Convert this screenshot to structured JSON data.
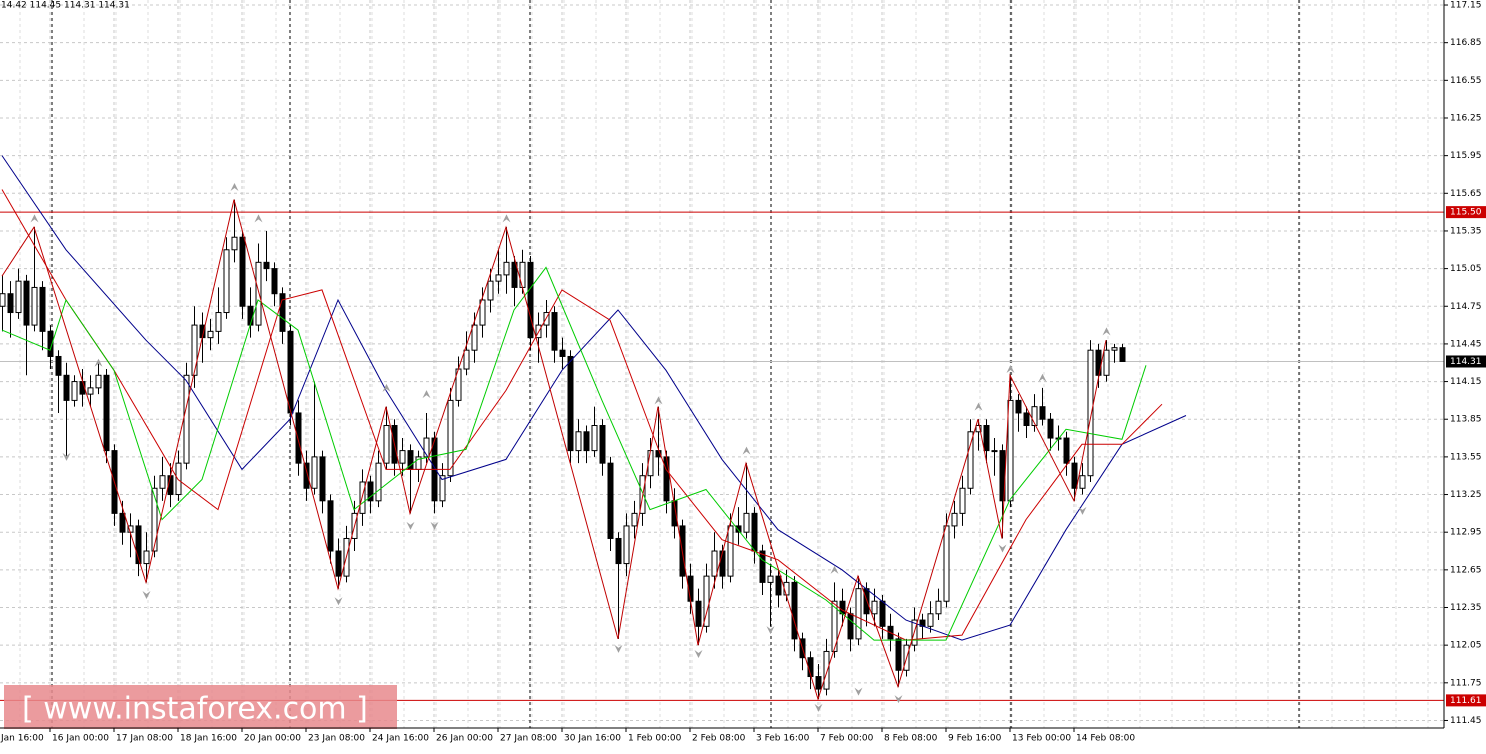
{
  "chart_data": {
    "type": "candlestick",
    "header": "14.42 114.45 114.31 114.31",
    "watermark": "[ www.instaforex.com ]",
    "bull_color": "#ffffff",
    "bear_color": "#000000",
    "grid": true,
    "ylim": [
      111.39,
      117.19
    ],
    "xlim": [
      -0.25,
      180.25
    ],
    "yticks": [
      117.15,
      116.85,
      116.55,
      116.25,
      115.95,
      115.65,
      115.35,
      115.05,
      114.75,
      114.45,
      114.15,
      113.85,
      113.55,
      113.25,
      112.95,
      112.65,
      112.35,
      112.05,
      111.75,
      111.45
    ],
    "xticks": [
      {
        "value": -2,
        "label": "Jan 16:00"
      },
      {
        "value": 6,
        "label": "16 Jan 00:00"
      },
      {
        "value": 14,
        "label": "17 Jan 08:00"
      },
      {
        "value": 22,
        "label": "18 Jan 16:00"
      },
      {
        "value": 30,
        "label": "20 Jan 00:00"
      },
      {
        "value": 38,
        "label": "23 Jan 08:00"
      },
      {
        "value": 46,
        "label": "24 Jan 16:00"
      },
      {
        "value": 54,
        "label": "26 Jan 00:00"
      },
      {
        "value": 62,
        "label": "27 Jan 08:00"
      },
      {
        "value": 70,
        "label": "30 Jan 16:00"
      },
      {
        "value": 78,
        "label": "1 Feb 00:00"
      },
      {
        "value": 86,
        "label": "2 Feb 08:00"
      },
      {
        "value": 94,
        "label": "3 Feb 16:00"
      },
      {
        "value": 102,
        "label": "7 Feb 00:00"
      },
      {
        "value": 110,
        "label": "8 Feb 08:00"
      },
      {
        "value": 118,
        "label": "9 Feb 16:00"
      },
      {
        "value": 126,
        "label": "13 Feb 00:00"
      },
      {
        "value": 134,
        "label": "14 Feb 08:00"
      }
    ],
    "levels": [
      {
        "value": {
          "value": 115.5,
          "label": "115.50"
        },
        "color": "#cc0000"
      },
      {
        "value": 111.61,
        "color": "#cc0000"
      }
    ],
    "current_price": 114.31,
    "candles": [
      [
        114.75,
        115.0,
        114.55,
        114.85
      ],
      [
        114.85,
        114.95,
        114.5,
        114.7
      ],
      [
        114.7,
        115.05,
        114.65,
        114.95
      ],
      [
        114.95,
        115.0,
        114.2,
        114.6
      ],
      [
        114.6,
        115.38,
        114.55,
        114.9
      ],
      [
        114.9,
        114.95,
        114.4,
        114.55
      ],
      [
        114.55,
        114.6,
        114.25,
        114.35
      ],
      [
        114.35,
        114.4,
        113.9,
        114.2
      ],
      [
        114.2,
        114.3,
        113.55,
        114.0
      ],
      [
        114.0,
        114.2,
        113.95,
        114.15
      ],
      [
        114.15,
        114.25,
        113.95,
        114.05
      ],
      [
        114.05,
        114.2,
        113.95,
        114.1
      ],
      [
        114.1,
        114.3,
        114.05,
        114.2
      ],
      [
        114.2,
        114.25,
        113.5,
        113.6
      ],
      [
        113.6,
        113.65,
        113.0,
        113.1
      ],
      [
        113.1,
        113.2,
        112.85,
        112.95
      ],
      [
        112.95,
        113.1,
        112.75,
        113.0
      ],
      [
        113.0,
        113.05,
        112.6,
        112.7
      ],
      [
        112.7,
        112.95,
        112.55,
        112.8
      ],
      [
        112.8,
        113.4,
        112.75,
        113.3
      ],
      [
        113.3,
        113.55,
        113.2,
        113.4
      ],
      [
        113.4,
        113.5,
        113.15,
        113.25
      ],
      [
        113.25,
        113.6,
        113.2,
        113.5
      ],
      [
        113.5,
        114.3,
        113.45,
        114.2
      ],
      [
        114.2,
        114.75,
        114.1,
        114.6
      ],
      [
        114.6,
        114.7,
        114.3,
        114.5
      ],
      [
        114.5,
        114.65,
        114.4,
        114.55
      ],
      [
        114.55,
        114.9,
        114.45,
        114.7
      ],
      [
        114.7,
        115.3,
        114.65,
        115.2
      ],
      [
        115.2,
        115.6,
        115.1,
        115.3
      ],
      [
        115.3,
        115.35,
        114.65,
        114.75
      ],
      [
        114.75,
        114.9,
        114.5,
        114.6
      ],
      [
        114.6,
        115.25,
        114.55,
        115.1
      ],
      [
        115.1,
        115.35,
        114.95,
        115.05
      ],
      [
        115.05,
        115.1,
        114.75,
        114.85
      ],
      [
        114.85,
        114.9,
        114.45,
        114.55
      ],
      [
        114.55,
        114.6,
        113.8,
        113.9
      ],
      [
        113.9,
        114.0,
        113.4,
        113.5
      ],
      [
        113.5,
        113.6,
        113.2,
        113.3
      ],
      [
        113.3,
        114.15,
        113.25,
        113.55
      ],
      [
        113.55,
        113.6,
        113.1,
        113.2
      ],
      [
        113.2,
        113.25,
        112.7,
        112.8
      ],
      [
        112.8,
        112.9,
        112.5,
        112.6
      ],
      [
        112.6,
        113.0,
        112.55,
        112.9
      ],
      [
        112.9,
        113.2,
        112.8,
        113.1
      ],
      [
        113.1,
        113.45,
        113.0,
        113.35
      ],
      [
        113.35,
        113.4,
        113.1,
        113.2
      ],
      [
        113.2,
        113.6,
        113.15,
        113.5
      ],
      [
        113.5,
        113.95,
        113.45,
        113.8
      ],
      [
        113.8,
        113.85,
        113.4,
        113.5
      ],
      [
        113.5,
        113.7,
        113.4,
        113.6
      ],
      [
        113.6,
        113.65,
        113.1,
        113.45
      ],
      [
        113.45,
        113.6,
        113.35,
        113.55
      ],
      [
        113.55,
        113.9,
        113.5,
        113.7
      ],
      [
        113.7,
        113.75,
        113.1,
        113.2
      ],
      [
        113.2,
        113.5,
        113.15,
        113.4
      ],
      [
        113.4,
        114.1,
        113.35,
        114.0
      ],
      [
        114.0,
        114.35,
        113.95,
        114.25
      ],
      [
        114.25,
        114.55,
        114.2,
        114.4
      ],
      [
        114.4,
        114.7,
        114.3,
        114.6
      ],
      [
        114.6,
        114.9,
        114.5,
        114.8
      ],
      [
        114.8,
        115.05,
        114.7,
        114.95
      ],
      [
        114.95,
        115.2,
        114.85,
        115.0
      ],
      [
        115.0,
        115.38,
        114.85,
        115.1
      ],
      [
        115.1,
        115.15,
        114.75,
        114.9
      ],
      [
        114.9,
        115.2,
        114.85,
        115.1
      ],
      [
        115.1,
        115.15,
        114.4,
        114.5
      ],
      [
        114.5,
        114.7,
        114.3,
        114.6
      ],
      [
        114.6,
        114.8,
        114.5,
        114.7
      ],
      [
        114.7,
        114.75,
        114.3,
        114.4
      ],
      [
        114.4,
        114.5,
        114.25,
        114.35
      ],
      [
        114.35,
        114.4,
        113.5,
        113.6
      ],
      [
        113.6,
        113.85,
        113.5,
        113.75
      ],
      [
        113.75,
        113.8,
        113.5,
        113.6
      ],
      [
        113.6,
        113.95,
        113.55,
        113.8
      ],
      [
        113.8,
        113.85,
        113.4,
        113.5
      ],
      [
        113.5,
        113.55,
        112.8,
        112.9
      ],
      [
        112.9,
        112.95,
        112.1,
        112.7
      ],
      [
        112.7,
        113.1,
        112.6,
        113.0
      ],
      [
        113.0,
        113.2,
        112.9,
        113.1
      ],
      [
        113.1,
        113.5,
        113.0,
        113.4
      ],
      [
        113.4,
        113.7,
        113.3,
        113.6
      ],
      [
        113.6,
        113.95,
        113.4,
        113.55
      ],
      [
        113.55,
        113.6,
        113.1,
        113.2
      ],
      [
        113.2,
        113.3,
        112.9,
        113.0
      ],
      [
        113.0,
        113.05,
        112.5,
        112.6
      ],
      [
        112.6,
        112.7,
        112.3,
        112.4
      ],
      [
        112.4,
        112.5,
        112.05,
        112.2
      ],
      [
        112.2,
        112.7,
        112.15,
        112.6
      ],
      [
        112.6,
        112.95,
        112.5,
        112.8
      ],
      [
        112.8,
        112.85,
        112.5,
        112.6
      ],
      [
        112.6,
        113.1,
        112.55,
        113.0
      ],
      [
        113.0,
        113.15,
        112.85,
        112.95
      ],
      [
        112.95,
        113.5,
        112.9,
        113.1
      ],
      [
        113.1,
        113.15,
        112.7,
        112.8
      ],
      [
        112.8,
        112.85,
        112.45,
        112.55
      ],
      [
        112.55,
        112.7,
        112.2,
        112.6
      ],
      [
        112.6,
        112.65,
        112.35,
        112.45
      ],
      [
        112.45,
        112.65,
        112.4,
        112.55
      ],
      [
        112.55,
        112.6,
        112.0,
        112.1
      ],
      [
        112.1,
        112.15,
        111.85,
        111.95
      ],
      [
        111.95,
        112.0,
        111.7,
        111.8
      ],
      [
        111.8,
        111.9,
        111.62,
        111.7
      ],
      [
        111.7,
        112.1,
        111.65,
        112.0
      ],
      [
        112.0,
        112.55,
        111.95,
        112.4
      ],
      [
        112.4,
        112.5,
        112.2,
        112.3
      ],
      [
        112.3,
        112.35,
        112.0,
        112.1
      ],
      [
        112.1,
        112.6,
        112.05,
        112.5
      ],
      [
        112.5,
        112.55,
        112.2,
        112.3
      ],
      [
        112.3,
        112.5,
        112.2,
        112.4
      ],
      [
        112.4,
        112.45,
        112.1,
        112.2
      ],
      [
        112.2,
        112.3,
        112.0,
        112.1
      ],
      [
        112.1,
        112.15,
        111.72,
        111.85
      ],
      [
        111.85,
        112.1,
        111.8,
        112.05
      ],
      [
        112.05,
        112.35,
        112.0,
        112.25
      ],
      [
        112.25,
        112.3,
        112.1,
        112.2
      ],
      [
        112.2,
        112.4,
        112.15,
        112.3
      ],
      [
        112.3,
        112.5,
        112.25,
        112.4
      ],
      [
        112.4,
        113.1,
        112.35,
        113.0
      ],
      [
        113.0,
        113.2,
        112.9,
        113.1
      ],
      [
        113.1,
        113.4,
        113.0,
        113.3
      ],
      [
        113.3,
        113.85,
        113.25,
        113.75
      ],
      [
        113.75,
        113.85,
        113.6,
        113.8
      ],
      [
        113.8,
        113.85,
        113.5,
        113.6
      ],
      [
        113.6,
        113.7,
        113.4,
        113.6
      ],
      [
        113.6,
        113.65,
        112.9,
        113.2
      ],
      [
        113.2,
        114.2,
        113.15,
        114.0
      ],
      [
        114.0,
        114.05,
        113.75,
        113.9
      ],
      [
        113.9,
        113.95,
        113.7,
        113.8
      ],
      [
        113.8,
        114.05,
        113.75,
        113.95
      ],
      [
        113.95,
        114.1,
        113.8,
        113.85
      ],
      [
        113.85,
        113.9,
        113.6,
        113.7
      ],
      [
        113.7,
        113.8,
        113.6,
        113.7
      ],
      [
        113.7,
        113.75,
        113.4,
        113.5
      ],
      [
        113.5,
        113.55,
        113.2,
        113.3
      ],
      [
        113.3,
        113.5,
        113.25,
        113.4
      ],
      [
        113.4,
        114.48,
        113.35,
        114.4
      ],
      [
        114.4,
        114.45,
        114.1,
        114.2
      ],
      [
        114.2,
        114.48,
        114.15,
        114.4
      ],
      [
        114.4,
        114.45,
        114.3,
        114.42
      ],
      [
        114.42,
        114.45,
        114.31,
        114.31
      ]
    ],
    "series": [
      {
        "color": "#00008b",
        "x": [
          0,
          8,
          18,
          23,
          30,
          36,
          42,
          48,
          55,
          63,
          70,
          77,
          83,
          90,
          97,
          105,
          113,
          120,
          126,
          133,
          140,
          148
        ],
        "values": [
          115.95,
          115.2,
          114.48,
          114.16,
          113.45,
          113.85,
          114.8,
          114.08,
          113.37,
          113.53,
          114.24,
          114.72,
          114.24,
          113.53,
          112.97,
          112.65,
          112.25,
          112.09,
          112.21,
          112.97,
          113.65,
          113.88
        ]
      },
      {
        "color": "#cc0000",
        "x": [
          0,
          8,
          14,
          22,
          27,
          35,
          40,
          48,
          56,
          63,
          70,
          76,
          83,
          90,
          97,
          105,
          113,
          120,
          128,
          135,
          140,
          145
        ],
        "values": [
          115.68,
          114.8,
          114.24,
          113.37,
          113.13,
          114.8,
          114.88,
          113.45,
          113.45,
          114.08,
          114.88,
          114.64,
          113.45,
          112.89,
          112.73,
          112.33,
          112.09,
          112.13,
          113.05,
          113.65,
          113.65,
          113.97
        ]
      },
      {
        "color": "#00cc00",
        "x": [
          0,
          6,
          8,
          14,
          20,
          25,
          32,
          37,
          44,
          52,
          58,
          64,
          68,
          75,
          81,
          88,
          95,
          103,
          109,
          118,
          126,
          133,
          140,
          143
        ],
        "values": [
          114.56,
          114.4,
          114.8,
          114.24,
          113.05,
          113.37,
          114.8,
          114.56,
          113.13,
          113.53,
          113.61,
          114.72,
          115.06,
          114.0,
          113.13,
          113.29,
          112.73,
          112.41,
          112.09,
          112.09,
          113.21,
          113.77,
          113.69,
          114.28
        ]
      },
      {
        "color": "#c00000",
        "x": [
          0,
          4,
          18,
          29,
          42,
          48,
          51,
          63,
          77,
          82,
          87,
          93,
          102,
          107,
          112,
          122,
          125,
          126,
          134,
          138
        ],
        "values": [
          114.99,
          115.38,
          112.55,
          115.6,
          112.5,
          113.95,
          113.1,
          115.38,
          112.1,
          113.95,
          112.05,
          113.5,
          111.62,
          112.6,
          111.72,
          113.85,
          112.9,
          114.2,
          113.2,
          114.48
        ]
      }
    ],
    "fractals_up": {
      "x": [
        4,
        12,
        29,
        32,
        48,
        53,
        63,
        82,
        93,
        104,
        122,
        126,
        130,
        138
      ],
      "values": [
        115.45,
        114.3,
        115.7,
        115.45,
        114.1,
        114.05,
        115.45,
        114.0,
        113.6,
        112.65,
        113.95,
        114.25,
        114.18,
        114.55
      ]
    },
    "fractals_down": {
      "x": [
        8,
        18,
        42,
        51,
        54,
        77,
        87,
        96,
        102,
        107,
        112,
        125,
        135
      ],
      "values": [
        113.55,
        112.45,
        112.4,
        113.0,
        113.0,
        112.02,
        111.98,
        112.17,
        111.55,
        111.68,
        111.62,
        112.82,
        113.12
      ]
    }
  }
}
